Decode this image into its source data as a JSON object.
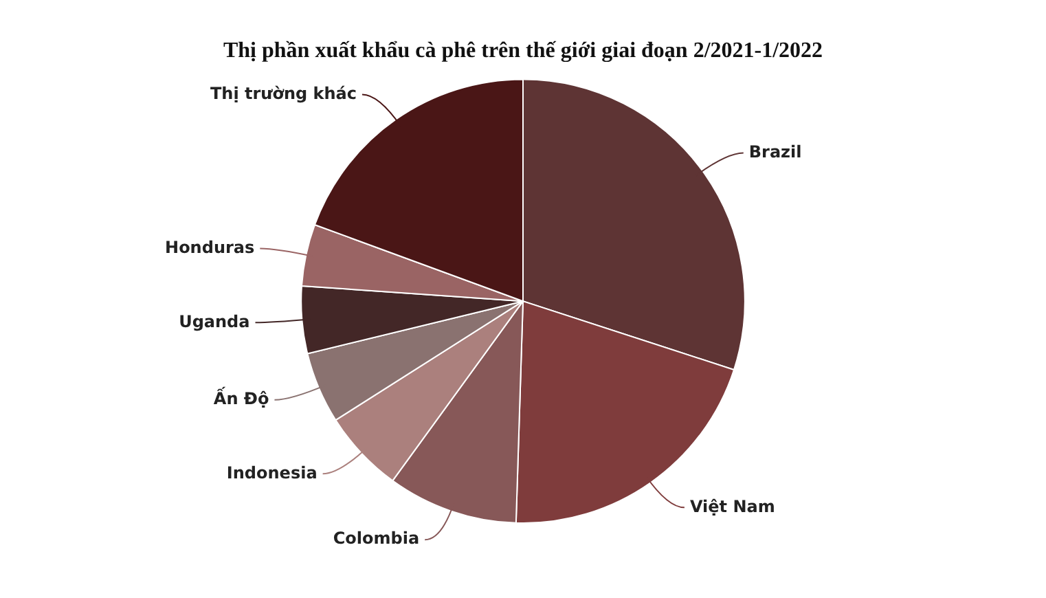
{
  "chart_data": {
    "type": "pie",
    "title": "Thị phần xuất khẩu cà phê trên thế giới giai đoạn 2/2021-1/2022",
    "categories": [
      "Brazil",
      "Việt Nam",
      "Colombia",
      "Indonesia",
      "Ấn Độ",
      "Uganda",
      "Honduras",
      "Thị trường khác"
    ],
    "values": [
      30,
      20.5,
      9.5,
      6,
      5.2,
      4.9,
      4.5,
      19.4
    ],
    "colors": [
      "#5e3434",
      "#7f3c3c",
      "#875858",
      "#ab807d",
      "#8a7270",
      "#432727",
      "#9a6464",
      "#4a1616"
    ],
    "legend": false
  }
}
